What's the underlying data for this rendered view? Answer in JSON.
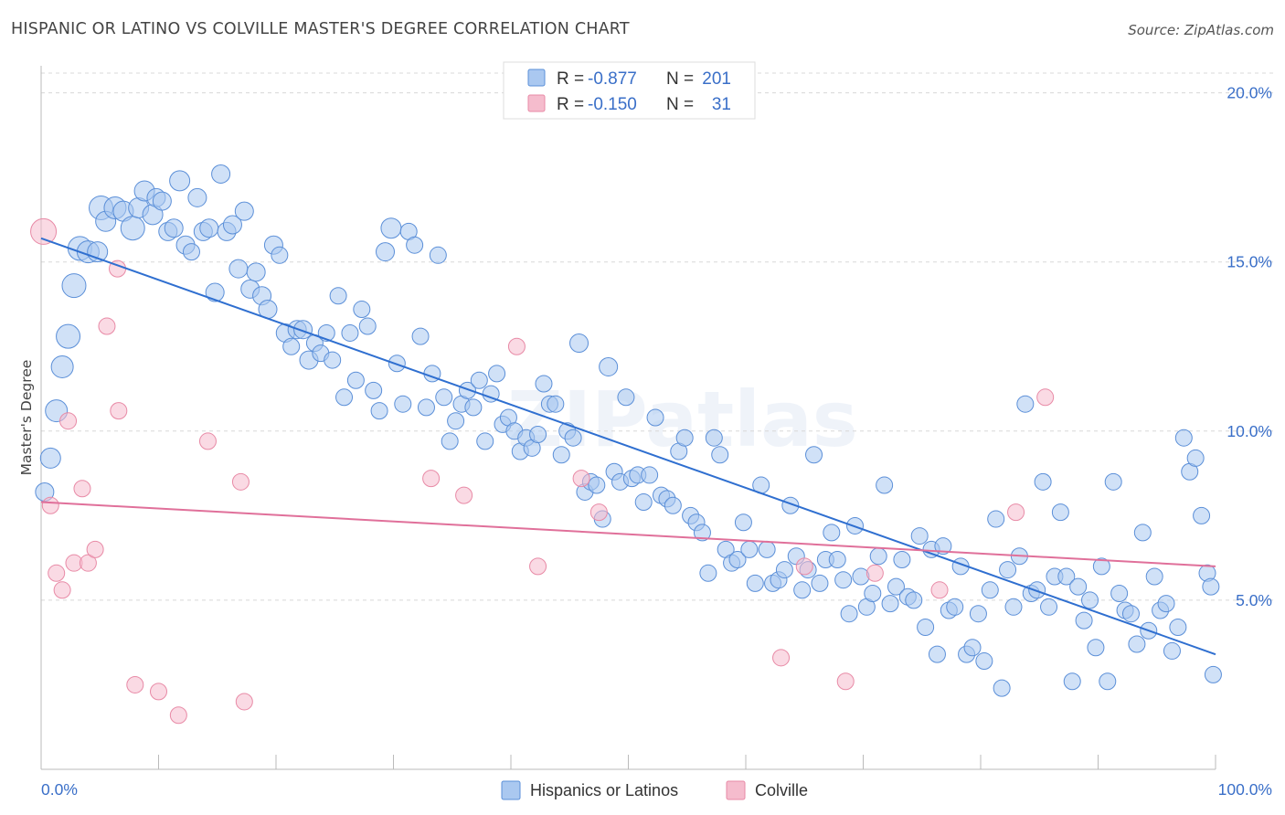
{
  "title": "HISPANIC OR LATINO VS COLVILLE MASTER'S DEGREE CORRELATION CHART",
  "source": "Source: ZipAtlas.com",
  "watermark": "ZIPatlas",
  "colors": {
    "blue_fill": "#aac8f0",
    "blue_stroke": "#5b8fd8",
    "blue_line": "#2f6fd0",
    "pink_fill": "#f5bccd",
    "pink_stroke": "#e88aa6",
    "pink_line": "#e0709a",
    "value_text": "#3a6fc8",
    "grid": "#d8d8d8"
  },
  "legend": {
    "rows": [
      {
        "r_label": "R =",
        "r_value": "-0.877",
        "n_label": "N =",
        "n_value": "201"
      },
      {
        "r_label": "R =",
        "r_value": "-0.150",
        "n_label": "N =",
        "n_value": "31"
      }
    ]
  },
  "chart_data": {
    "type": "scatter",
    "title": "HISPANIC OR LATINO VS COLVILLE MASTER'S DEGREE CORRELATION CHART",
    "xlabel": "",
    "ylabel": "Master's Degree",
    "xlim": [
      0,
      100
    ],
    "ylim": [
      0,
      20.8
    ],
    "x_tick_labels": [
      "0.0%",
      "100.0%"
    ],
    "y_ticks": [
      5,
      10,
      15,
      20
    ],
    "y_tick_labels": [
      "5.0%",
      "10.0%",
      "15.0%",
      "20.0%"
    ],
    "grid": "horizontal dashed",
    "legend_position": "top-center",
    "series": [
      {
        "name": "Hispanics or Latinos",
        "color": "#aac8f0",
        "trend": {
          "x": [
            0,
            100
          ],
          "y": [
            15.7,
            3.4
          ]
        },
        "points": [
          [
            0.3,
            8.2,
            10
          ],
          [
            0.8,
            9.2,
            11
          ],
          [
            1.3,
            10.6,
            12
          ],
          [
            1.8,
            11.9,
            12
          ],
          [
            2.3,
            12.8,
            13
          ],
          [
            2.8,
            14.3,
            13
          ],
          [
            3.3,
            15.4,
            13
          ],
          [
            4,
            15.3,
            12
          ],
          [
            4.8,
            15.3,
            11
          ],
          [
            5.1,
            16.6,
            13
          ],
          [
            5.5,
            16.2,
            11
          ],
          [
            6.3,
            16.6,
            12
          ],
          [
            7,
            16.5,
            11
          ],
          [
            7.8,
            16.0,
            13
          ],
          [
            8.3,
            16.6,
            11
          ],
          [
            8.8,
            17.1,
            11
          ],
          [
            9.5,
            16.4,
            11
          ],
          [
            9.8,
            16.9,
            10
          ],
          [
            10.3,
            16.8,
            10
          ],
          [
            10.8,
            15.9,
            10
          ],
          [
            11.3,
            16.0,
            10
          ],
          [
            11.8,
            17.4,
            11
          ],
          [
            12.3,
            15.5,
            10
          ],
          [
            12.8,
            15.3,
            9
          ],
          [
            13.3,
            16.9,
            10
          ],
          [
            13.8,
            15.9,
            10
          ],
          [
            14.3,
            16.0,
            10
          ],
          [
            14.8,
            14.1,
            10
          ],
          [
            15.3,
            17.6,
            10
          ],
          [
            15.8,
            15.9,
            10
          ],
          [
            16.3,
            16.1,
            10
          ],
          [
            16.8,
            14.8,
            10
          ],
          [
            17.3,
            16.5,
            10
          ],
          [
            17.8,
            14.2,
            10
          ],
          [
            18.3,
            14.7,
            10
          ],
          [
            18.8,
            14.0,
            10
          ],
          [
            19.3,
            13.6,
            10
          ],
          [
            19.8,
            15.5,
            10
          ],
          [
            20.3,
            15.2,
            9
          ],
          [
            20.8,
            12.9,
            10
          ],
          [
            21.3,
            12.5,
            9
          ],
          [
            21.8,
            13.0,
            10
          ],
          [
            22.3,
            13.0,
            10
          ],
          [
            22.8,
            12.1,
            10
          ],
          [
            23.3,
            12.6,
            9
          ],
          [
            23.8,
            12.3,
            9
          ],
          [
            24.3,
            12.9,
            9
          ],
          [
            24.8,
            12.1,
            9
          ],
          [
            25.3,
            14.0,
            9
          ],
          [
            25.8,
            11.0,
            9
          ],
          [
            26.3,
            12.9,
            9
          ],
          [
            26.8,
            11.5,
            9
          ],
          [
            27.3,
            13.6,
            9
          ],
          [
            27.8,
            13.1,
            9
          ],
          [
            28.3,
            11.2,
            9
          ],
          [
            28.8,
            10.6,
            9
          ],
          [
            29.3,
            15.3,
            10
          ],
          [
            29.8,
            16.0,
            11
          ],
          [
            30.3,
            12.0,
            9
          ],
          [
            30.8,
            10.8,
            9
          ],
          [
            31.3,
            15.9,
            9
          ],
          [
            31.8,
            15.5,
            9
          ],
          [
            32.3,
            12.8,
            9
          ],
          [
            32.8,
            10.7,
            9
          ],
          [
            33.3,
            11.7,
            9
          ],
          [
            33.8,
            15.2,
            9
          ],
          [
            34.3,
            11.0,
            9
          ],
          [
            34.8,
            9.7,
            9
          ],
          [
            35.3,
            10.3,
            9
          ],
          [
            35.8,
            10.8,
            9
          ],
          [
            36.3,
            11.2,
            9
          ],
          [
            36.8,
            10.7,
            9
          ],
          [
            37.3,
            11.5,
            9
          ],
          [
            37.8,
            9.7,
            9
          ],
          [
            38.3,
            11.1,
            9
          ],
          [
            38.8,
            11.7,
            9
          ],
          [
            39.3,
            10.2,
            9
          ],
          [
            39.8,
            10.4,
            9
          ],
          [
            40.3,
            10.0,
            9
          ],
          [
            40.8,
            9.4,
            9
          ],
          [
            41.3,
            9.8,
            9
          ],
          [
            41.8,
            9.5,
            9
          ],
          [
            42.3,
            9.9,
            9
          ],
          [
            42.8,
            11.4,
            9
          ],
          [
            43.3,
            10.8,
            9
          ],
          [
            43.8,
            10.8,
            9
          ],
          [
            44.3,
            9.3,
            9
          ],
          [
            44.8,
            10.0,
            9
          ],
          [
            45.3,
            9.8,
            9
          ],
          [
            45.8,
            12.6,
            10
          ],
          [
            46.3,
            8.2,
            9
          ],
          [
            46.8,
            8.5,
            9
          ],
          [
            47.3,
            8.4,
            9
          ],
          [
            47.8,
            7.4,
            9
          ],
          [
            48.3,
            11.9,
            10
          ],
          [
            48.8,
            8.8,
            9
          ],
          [
            49.3,
            8.5,
            9
          ],
          [
            49.8,
            11.0,
            9
          ],
          [
            50.3,
            8.6,
            9
          ],
          [
            50.8,
            8.7,
            9
          ],
          [
            51.3,
            7.9,
            9
          ],
          [
            51.8,
            8.7,
            9
          ],
          [
            52.3,
            10.4,
            9
          ],
          [
            52.8,
            8.1,
            9
          ],
          [
            53.3,
            8.0,
            9
          ],
          [
            53.8,
            7.8,
            9
          ],
          [
            54.3,
            9.4,
            9
          ],
          [
            54.8,
            9.8,
            9
          ],
          [
            55.3,
            7.5,
            9
          ],
          [
            55.8,
            7.3,
            9
          ],
          [
            56.3,
            7.0,
            9
          ],
          [
            56.8,
            5.8,
            9
          ],
          [
            57.3,
            9.8,
            9
          ],
          [
            57.8,
            9.3,
            9
          ],
          [
            58.3,
            6.5,
            9
          ],
          [
            58.8,
            6.1,
            9
          ],
          [
            59.3,
            6.2,
            9
          ],
          [
            59.8,
            7.3,
            9
          ],
          [
            60.3,
            6.5,
            9
          ],
          [
            60.8,
            5.5,
            9
          ],
          [
            61.3,
            8.4,
            9
          ],
          [
            61.8,
            6.5,
            9
          ],
          [
            62.3,
            5.5,
            9
          ],
          [
            62.8,
            5.6,
            9
          ],
          [
            63.3,
            5.9,
            9
          ],
          [
            63.8,
            7.8,
            9
          ],
          [
            64.3,
            6.3,
            9
          ],
          [
            64.8,
            5.3,
            9
          ],
          [
            65.3,
            5.9,
            9
          ],
          [
            65.8,
            9.3,
            9
          ],
          [
            66.3,
            5.5,
            9
          ],
          [
            66.8,
            6.2,
            9
          ],
          [
            67.3,
            7.0,
            9
          ],
          [
            67.8,
            6.2,
            9
          ],
          [
            68.3,
            5.6,
            9
          ],
          [
            68.8,
            4.6,
            9
          ],
          [
            69.3,
            7.2,
            9
          ],
          [
            69.8,
            5.7,
            9
          ],
          [
            70.3,
            4.8,
            9
          ],
          [
            70.8,
            5.2,
            9
          ],
          [
            71.3,
            6.3,
            9
          ],
          [
            71.8,
            8.4,
            9
          ],
          [
            72.3,
            4.9,
            9
          ],
          [
            72.8,
            5.4,
            9
          ],
          [
            73.3,
            6.2,
            9
          ],
          [
            73.8,
            5.1,
            9
          ],
          [
            74.3,
            5.0,
            9
          ],
          [
            74.8,
            6.9,
            9
          ],
          [
            75.3,
            4.2,
            9
          ],
          [
            75.8,
            6.5,
            9
          ],
          [
            76.3,
            3.4,
            9
          ],
          [
            76.8,
            6.6,
            9
          ],
          [
            77.3,
            4.7,
            9
          ],
          [
            77.8,
            4.8,
            9
          ],
          [
            78.3,
            6.0,
            9
          ],
          [
            78.8,
            3.4,
            9
          ],
          [
            79.3,
            3.6,
            9
          ],
          [
            79.8,
            4.6,
            9
          ],
          [
            80.3,
            3.2,
            9
          ],
          [
            80.8,
            5.3,
            9
          ],
          [
            81.3,
            7.4,
            9
          ],
          [
            81.8,
            2.4,
            9
          ],
          [
            82.3,
            5.9,
            9
          ],
          [
            82.8,
            4.8,
            9
          ],
          [
            83.3,
            6.3,
            9
          ],
          [
            83.8,
            10.8,
            9
          ],
          [
            84.3,
            5.2,
            9
          ],
          [
            84.8,
            5.3,
            9
          ],
          [
            85.3,
            8.5,
            9
          ],
          [
            85.8,
            4.8,
            9
          ],
          [
            86.3,
            5.7,
            9
          ],
          [
            86.8,
            7.6,
            9
          ],
          [
            87.3,
            5.7,
            9
          ],
          [
            87.8,
            2.6,
            9
          ],
          [
            88.3,
            5.4,
            9
          ],
          [
            88.8,
            4.4,
            9
          ],
          [
            89.3,
            5.0,
            9
          ],
          [
            89.8,
            3.6,
            9
          ],
          [
            90.3,
            6.0,
            9
          ],
          [
            90.8,
            2.6,
            9
          ],
          [
            91.3,
            8.5,
            9
          ],
          [
            91.8,
            5.2,
            9
          ],
          [
            92.3,
            4.7,
            9
          ],
          [
            92.8,
            4.6,
            9
          ],
          [
            93.3,
            3.7,
            9
          ],
          [
            93.8,
            7.0,
            9
          ],
          [
            94.3,
            4.1,
            9
          ],
          [
            94.8,
            5.7,
            9
          ],
          [
            95.3,
            4.7,
            9
          ],
          [
            95.8,
            4.9,
            9
          ],
          [
            96.3,
            3.5,
            9
          ],
          [
            96.8,
            4.2,
            9
          ],
          [
            97.3,
            9.8,
            9
          ],
          [
            97.8,
            8.8,
            9
          ],
          [
            98.3,
            9.2,
            9
          ],
          [
            98.8,
            7.5,
            9
          ],
          [
            99.3,
            5.8,
            9
          ],
          [
            99.6,
            5.4,
            9
          ],
          [
            99.8,
            2.8,
            9
          ]
        ]
      },
      {
        "name": "Colville",
        "color": "#f5bccd",
        "trend": {
          "x": [
            0,
            100
          ],
          "y": [
            7.9,
            6.0
          ]
        },
        "points": [
          [
            0.2,
            15.9,
            14
          ],
          [
            0.8,
            7.8,
            9
          ],
          [
            1.3,
            5.8,
            9
          ],
          [
            1.8,
            5.3,
            9
          ],
          [
            2.3,
            10.3,
            9
          ],
          [
            2.8,
            6.1,
            9
          ],
          [
            3.5,
            8.3,
            9
          ],
          [
            4,
            6.1,
            9
          ],
          [
            4.6,
            6.5,
            9
          ],
          [
            5.6,
            13.1,
            9
          ],
          [
            6.5,
            14.8,
            9
          ],
          [
            6.6,
            10.6,
            9
          ],
          [
            8,
            2.5,
            9
          ],
          [
            10,
            2.3,
            9
          ],
          [
            11.7,
            1.6,
            9
          ],
          [
            14.2,
            9.7,
            9
          ],
          [
            17,
            8.5,
            9
          ],
          [
            17.3,
            2.0,
            9
          ],
          [
            33.2,
            8.6,
            9
          ],
          [
            36,
            8.1,
            9
          ],
          [
            40.5,
            12.5,
            9
          ],
          [
            42.3,
            6.0,
            9
          ],
          [
            46,
            8.6,
            9
          ],
          [
            47.5,
            7.6,
            9
          ],
          [
            63,
            3.3,
            9
          ],
          [
            65,
            6.0,
            9
          ],
          [
            68.5,
            2.6,
            9
          ],
          [
            71,
            5.8,
            9
          ],
          [
            76.5,
            5.3,
            9
          ],
          [
            83,
            7.6,
            9
          ],
          [
            85.5,
            11.0,
            9
          ]
        ]
      }
    ]
  }
}
